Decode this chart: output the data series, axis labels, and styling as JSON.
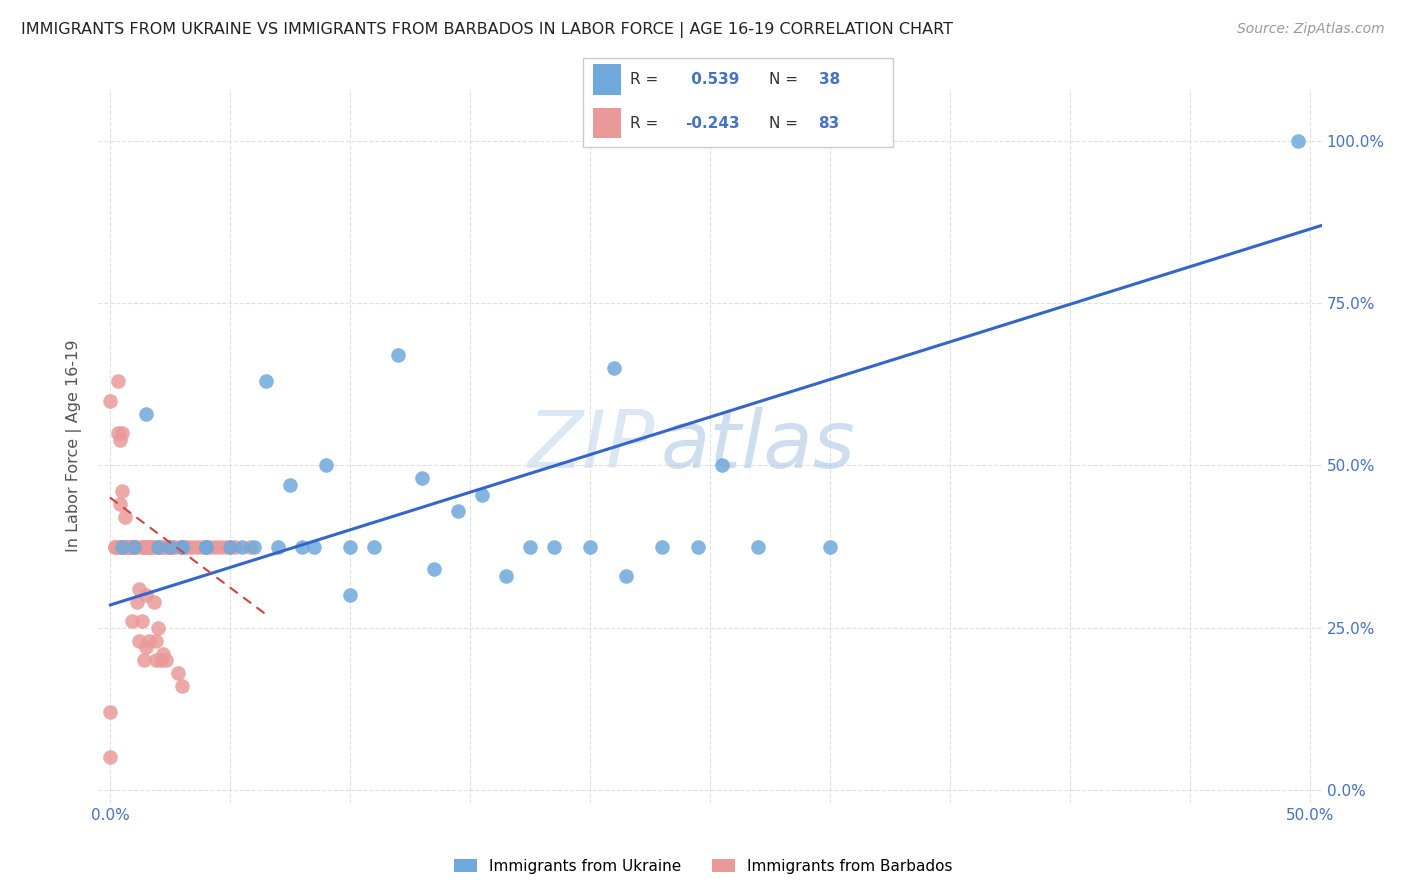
{
  "title": "IMMIGRANTS FROM UKRAINE VS IMMIGRANTS FROM BARBADOS IN LABOR FORCE | AGE 16-19 CORRELATION CHART",
  "source": "Source: ZipAtlas.com",
  "ylabel": "In Labor Force | Age 16-19",
  "xlim": [
    -0.005,
    0.505
  ],
  "ylim": [
    -0.02,
    1.08
  ],
  "ukraine_color": "#6fa8dc",
  "barbados_color": "#ea9999",
  "ukraine_R": 0.539,
  "ukraine_N": 38,
  "barbados_R": -0.243,
  "barbados_N": 83,
  "ukraine_scatter_x": [
    0.005,
    0.01,
    0.015,
    0.02,
    0.025,
    0.03,
    0.03,
    0.04,
    0.04,
    0.05,
    0.055,
    0.06,
    0.065,
    0.07,
    0.075,
    0.08,
    0.085,
    0.09,
    0.1,
    0.1,
    0.11,
    0.12,
    0.13,
    0.135,
    0.145,
    0.155,
    0.165,
    0.175,
    0.185,
    0.2,
    0.21,
    0.215,
    0.23,
    0.245,
    0.255,
    0.27,
    0.3,
    0.495
  ],
  "ukraine_scatter_y": [
    0.375,
    0.375,
    0.58,
    0.375,
    0.375,
    0.375,
    0.375,
    0.375,
    0.375,
    0.375,
    0.375,
    0.375,
    0.63,
    0.375,
    0.47,
    0.375,
    0.375,
    0.5,
    0.375,
    0.3,
    0.375,
    0.67,
    0.48,
    0.34,
    0.43,
    0.455,
    0.33,
    0.375,
    0.375,
    0.375,
    0.65,
    0.33,
    0.375,
    0.375,
    0.5,
    0.375,
    0.375,
    1.0
  ],
  "barbados_scatter_x": [
    0.0,
    0.0,
    0.0,
    0.002,
    0.002,
    0.003,
    0.003,
    0.003,
    0.004,
    0.004,
    0.004,
    0.005,
    0.005,
    0.005,
    0.005,
    0.005,
    0.006,
    0.006,
    0.006,
    0.006,
    0.007,
    0.007,
    0.007,
    0.008,
    0.008,
    0.008,
    0.008,
    0.009,
    0.009,
    0.01,
    0.01,
    0.01,
    0.01,
    0.01,
    0.011,
    0.011,
    0.012,
    0.012,
    0.013,
    0.013,
    0.013,
    0.014,
    0.014,
    0.015,
    0.015,
    0.015,
    0.016,
    0.016,
    0.016,
    0.017,
    0.017,
    0.018,
    0.018,
    0.019,
    0.019,
    0.02,
    0.02,
    0.021,
    0.021,
    0.022,
    0.022,
    0.023,
    0.023,
    0.024,
    0.025,
    0.026,
    0.027,
    0.028,
    0.029,
    0.03,
    0.031,
    0.032,
    0.034,
    0.036,
    0.038,
    0.04,
    0.042,
    0.044,
    0.046,
    0.048,
    0.05,
    0.052,
    0.058
  ],
  "barbados_scatter_y": [
    0.05,
    0.12,
    0.6,
    0.375,
    0.375,
    0.55,
    0.63,
    0.375,
    0.44,
    0.54,
    0.375,
    0.46,
    0.375,
    0.55,
    0.375,
    0.375,
    0.375,
    0.375,
    0.42,
    0.375,
    0.375,
    0.375,
    0.375,
    0.375,
    0.375,
    0.375,
    0.375,
    0.375,
    0.26,
    0.375,
    0.375,
    0.375,
    0.375,
    0.375,
    0.29,
    0.375,
    0.23,
    0.31,
    0.375,
    0.26,
    0.375,
    0.2,
    0.375,
    0.375,
    0.3,
    0.22,
    0.375,
    0.23,
    0.375,
    0.375,
    0.375,
    0.29,
    0.375,
    0.2,
    0.23,
    0.375,
    0.25,
    0.375,
    0.2,
    0.375,
    0.21,
    0.375,
    0.2,
    0.375,
    0.375,
    0.375,
    0.375,
    0.18,
    0.375,
    0.16,
    0.375,
    0.375,
    0.375,
    0.375,
    0.375,
    0.375,
    0.375,
    0.375,
    0.375,
    0.375,
    0.375,
    0.375,
    0.375
  ],
  "ukraine_trend_x": [
    0.0,
    0.505
  ],
  "ukraine_trend_y": [
    0.285,
    0.87
  ],
  "barbados_trend_x": [
    0.0,
    0.065
  ],
  "barbados_trend_y": [
    0.45,
    0.27
  ],
  "watermark_zip": "ZIP",
  "watermark_atlas": "atlas",
  "background_color": "#ffffff",
  "grid_color": "#e0e0e0",
  "tick_color": "#4472c4",
  "title_color": "#222222"
}
